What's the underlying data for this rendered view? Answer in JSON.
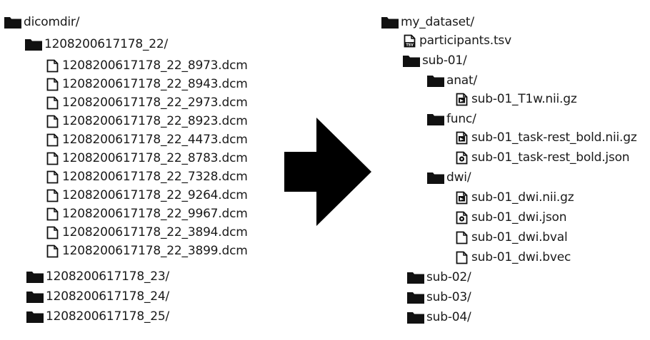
{
  "left_tree": {
    "root": "dicomdir/",
    "children": [
      {
        "name": "1208200617178_22/",
        "files": [
          "1208200617178_22_8973.dcm",
          "1208200617178_22_8943.dcm",
          "1208200617178_22_2973.dcm",
          "1208200617178_22_8923.dcm",
          "1208200617178_22_4473.dcm",
          "1208200617178_22_8783.dcm",
          "1208200617178_22_7328.dcm",
          "1208200617178_22_9264.dcm",
          "1208200617178_22_9967.dcm",
          "1208200617178_22_3894.dcm",
          "1208200617178_22_3899.dcm"
        ]
      },
      {
        "name": "1208200617178_23/"
      },
      {
        "name": "1208200617178_24/"
      },
      {
        "name": "1208200617178_25/"
      }
    ]
  },
  "right_tree": {
    "root": "my_dataset/",
    "participants": "participants.tsv",
    "tsv_icon_label": "TSV",
    "sub01": {
      "name": "sub-01/",
      "anat": {
        "name": "anat/",
        "files": [
          "sub-01_T1w.nii.gz"
        ]
      },
      "func": {
        "name": "func/",
        "files": [
          "sub-01_task-rest_bold.nii.gz",
          "sub-01_task-rest_bold.json"
        ]
      },
      "dwi": {
        "name": "dwi/",
        "files": [
          "sub-01_dwi.nii.gz",
          "sub-01_dwi.json",
          "sub-01_dwi.bval",
          "sub-01_dwi.bvec"
        ]
      }
    },
    "others": [
      "sub-02/",
      "sub-03/",
      "sub-04/"
    ]
  },
  "icons": {
    "folder": "folder-icon",
    "file": "file-icon",
    "nifti": "nifti-file-icon",
    "json": "json-file-icon",
    "tsv": "tsv-file-icon",
    "arrow": "right-arrow-icon"
  },
  "colors": {
    "ink": "#111111",
    "text": "#1a1a1a"
  }
}
